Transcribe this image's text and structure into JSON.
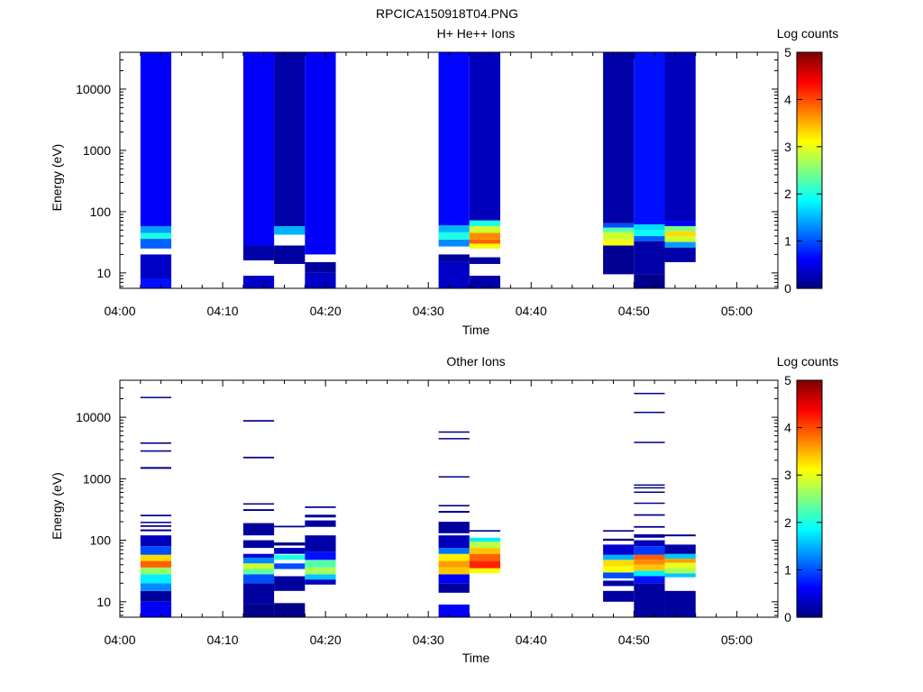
{
  "figure_title": "RPCICA150918T04.PNG",
  "colorbar": {
    "label": "Log counts",
    "range": [
      0,
      5
    ],
    "ticks": [
      "0",
      "1",
      "2",
      "3",
      "4",
      "5"
    ]
  },
  "chart_data": [
    {
      "type": "heatmap",
      "title": "H+ He++ Ions",
      "xlabel": "Time",
      "ylabel": "Energy (eV)",
      "y_scale": "log",
      "ylim": [
        5.6,
        40000
      ],
      "x_ticks": [
        "04:00",
        "04:10",
        "04:20",
        "04:30",
        "04:40",
        "04:50",
        "05:00"
      ],
      "y_ticks": [
        "10",
        "100",
        "1000",
        "10000"
      ],
      "z_label": "Log counts",
      "z_range": [
        0,
        5
      ],
      "columns": [
        {
          "t_start": "04:02",
          "t_end": "04:05",
          "spans": [
            {
              "e_lo": 5.6,
              "e_hi": 8,
              "z": 0.7
            },
            {
              "e_lo": 8,
              "e_hi": 20,
              "z": 0.35
            },
            {
              "e_lo": 25,
              "e_hi": 36,
              "z": 1.1
            },
            {
              "e_lo": 36,
              "e_hi": 45,
              "z": 2.0
            },
            {
              "e_lo": 45,
              "e_hi": 58,
              "z": 1.4
            },
            {
              "e_lo": 58,
              "e_hi": 40000,
              "z": 0.6
            }
          ]
        },
        {
          "t_start": "04:12",
          "t_end": "04:15",
          "spans": [
            {
              "e_lo": 5.6,
              "e_hi": 9,
              "z": 0.35
            },
            {
              "e_lo": 16,
              "e_hi": 28,
              "z": 0.2
            },
            {
              "e_lo": 28,
              "e_hi": 40000,
              "z": 0.6
            }
          ]
        },
        {
          "t_start": "04:15",
          "t_end": "04:18",
          "spans": [
            {
              "e_lo": 14,
              "e_hi": 28,
              "z": 0.15
            },
            {
              "e_lo": 42,
              "e_hi": 58,
              "z": 1.5
            },
            {
              "e_lo": 58,
              "e_hi": 40000,
              "z": 0.2
            }
          ]
        },
        {
          "t_start": "04:18",
          "t_end": "04:21",
          "spans": [
            {
              "e_lo": 5.6,
              "e_hi": 10,
              "z": 0.35
            },
            {
              "e_lo": 10,
              "e_hi": 15,
              "z": 0.15
            },
            {
              "e_lo": 20,
              "e_hi": 40000,
              "z": 0.6
            }
          ]
        },
        {
          "t_start": "04:31",
          "t_end": "04:34",
          "spans": [
            {
              "e_lo": 5.6,
              "e_hi": 15,
              "z": 0.35
            },
            {
              "e_lo": 15,
              "e_hi": 20,
              "z": 0.15
            },
            {
              "e_lo": 27,
              "e_hi": 35,
              "z": 1.3
            },
            {
              "e_lo": 35,
              "e_hi": 46,
              "z": 2.0
            },
            {
              "e_lo": 46,
              "e_hi": 60,
              "z": 1.5
            },
            {
              "e_lo": 60,
              "e_hi": 40000,
              "z": 0.65
            }
          ]
        },
        {
          "t_start": "04:34",
          "t_end": "04:37",
          "spans": [
            {
              "e_lo": 5.6,
              "e_hi": 9,
              "z": 0.2
            },
            {
              "e_lo": 14,
              "e_hi": 18,
              "z": 0.15
            },
            {
              "e_lo": 25,
              "e_hi": 30,
              "z": 3.1
            },
            {
              "e_lo": 30,
              "e_hi": 35,
              "z": 3.9
            },
            {
              "e_lo": 35,
              "e_hi": 45,
              "z": 3.7
            },
            {
              "e_lo": 45,
              "e_hi": 58,
              "z": 2.9
            },
            {
              "e_lo": 58,
              "e_hi": 72,
              "z": 2.0
            },
            {
              "e_lo": 72,
              "e_hi": 40000,
              "z": 0.3
            }
          ]
        },
        {
          "t_start": "04:47",
          "t_end": "04:50",
          "spans": [
            {
              "e_lo": 9.5,
              "e_hi": 28,
              "z": 0.1
            },
            {
              "e_lo": 28,
              "e_hi": 34,
              "z": 3.1
            },
            {
              "e_lo": 34,
              "e_hi": 46,
              "z": 2.9
            },
            {
              "e_lo": 46,
              "e_hi": 55,
              "z": 2.3
            },
            {
              "e_lo": 55,
              "e_hi": 65,
              "z": 1.0
            },
            {
              "e_lo": 65,
              "e_hi": 40000,
              "z": 0.2
            }
          ]
        },
        {
          "t_start": "04:50",
          "t_end": "04:53",
          "spans": [
            {
              "e_lo": 5.6,
              "e_hi": 9.5,
              "z": 0.05
            },
            {
              "e_lo": 9.5,
              "e_hi": 33,
              "z": 0.2
            },
            {
              "e_lo": 33,
              "e_hi": 40,
              "z": 1.1
            },
            {
              "e_lo": 40,
              "e_hi": 50,
              "z": 1.9
            },
            {
              "e_lo": 50,
              "e_hi": 62,
              "z": 1.7
            },
            {
              "e_lo": 62,
              "e_hi": 40000,
              "z": 0.7
            }
          ]
        },
        {
          "t_start": "04:53",
          "t_end": "04:56",
          "spans": [
            {
              "e_lo": 15,
              "e_hi": 26,
              "z": 0.2
            },
            {
              "e_lo": 26,
              "e_hi": 32,
              "z": 1.4
            },
            {
              "e_lo": 32,
              "e_hi": 40,
              "z": 2.9
            },
            {
              "e_lo": 40,
              "e_hi": 48,
              "z": 3.3
            },
            {
              "e_lo": 48,
              "e_hi": 58,
              "z": 2.5
            },
            {
              "e_lo": 58,
              "e_hi": 70,
              "z": 0.6
            },
            {
              "e_lo": 70,
              "e_hi": 40000,
              "z": 0.3
            }
          ]
        }
      ]
    },
    {
      "type": "heatmap",
      "title": "Other Ions",
      "xlabel": "Time",
      "ylabel": "Energy (eV)",
      "y_scale": "log",
      "ylim": [
        5.6,
        40000
      ],
      "x_ticks": [
        "04:00",
        "04:10",
        "04:20",
        "04:30",
        "04:40",
        "04:50",
        "05:00"
      ],
      "y_ticks": [
        "10",
        "100",
        "1000",
        "10000"
      ],
      "z_label": "Log counts",
      "z_range": [
        0,
        5
      ],
      "columns": [
        {
          "t_start": "04:02",
          "t_end": "04:05",
          "spans": [
            {
              "e_lo": 5.6,
              "e_hi": 10,
              "z": 0.6
            },
            {
              "e_lo": 10,
              "e_hi": 15,
              "z": 0.15
            },
            {
              "e_lo": 15,
              "e_hi": 20,
              "z": 1.3
            },
            {
              "e_lo": 20,
              "e_hi": 28,
              "z": 1.8
            },
            {
              "e_lo": 28,
              "e_hi": 36,
              "z": 2.6
            },
            {
              "e_lo": 36,
              "e_hi": 46,
              "z": 3.9
            },
            {
              "e_lo": 46,
              "e_hi": 58,
              "z": 3.3
            },
            {
              "e_lo": 58,
              "e_hi": 80,
              "z": 1.0
            },
            {
              "e_lo": 80,
              "e_hi": 120,
              "z": 0.3
            },
            {
              "e_lo": 140,
              "e_hi": 150,
              "z": 0.05
            },
            {
              "e_lo": 165,
              "e_hi": 175,
              "z": 0.05
            },
            {
              "e_lo": 190,
              "e_hi": 200,
              "z": 0.05
            },
            {
              "e_lo": 245,
              "e_hi": 260,
              "z": 0.05
            },
            {
              "e_lo": 1450,
              "e_hi": 1550,
              "z": 0.05
            },
            {
              "e_lo": 2750,
              "e_hi": 2900,
              "z": 0.05
            },
            {
              "e_lo": 3700,
              "e_hi": 3900,
              "z": 0.05
            },
            {
              "e_lo": 20500,
              "e_hi": 21500,
              "z": 0.05
            }
          ]
        },
        {
          "t_start": "04:12",
          "t_end": "04:15",
          "spans": [
            {
              "e_lo": 5.6,
              "e_hi": 9,
              "z": 0.05
            },
            {
              "e_lo": 9,
              "e_hi": 20,
              "z": 0.15
            },
            {
              "e_lo": 20,
              "e_hi": 28,
              "z": 1.0
            },
            {
              "e_lo": 28,
              "e_hi": 34,
              "z": 2.3
            },
            {
              "e_lo": 34,
              "e_hi": 42,
              "z": 2.9
            },
            {
              "e_lo": 42,
              "e_hi": 52,
              "z": 1.3
            },
            {
              "e_lo": 52,
              "e_hi": 60,
              "z": 0.4
            },
            {
              "e_lo": 75,
              "e_hi": 100,
              "z": 0.15
            },
            {
              "e_lo": 120,
              "e_hi": 190,
              "z": 0.15
            },
            {
              "e_lo": 300,
              "e_hi": 320,
              "z": 0.05
            },
            {
              "e_lo": 380,
              "e_hi": 400,
              "z": 0.05
            },
            {
              "e_lo": 2150,
              "e_hi": 2280,
              "z": 0.05
            },
            {
              "e_lo": 8500,
              "e_hi": 9000,
              "z": 0.05
            }
          ]
        },
        {
          "t_start": "04:15",
          "t_end": "04:18",
          "spans": [
            {
              "e_lo": 5.6,
              "e_hi": 9.5,
              "z": 0.05
            },
            {
              "e_lo": 15,
              "e_hi": 26,
              "z": 0.15
            },
            {
              "e_lo": 34,
              "e_hi": 42,
              "z": 1.0
            },
            {
              "e_lo": 48,
              "e_hi": 58,
              "z": 2.0
            },
            {
              "e_lo": 60,
              "e_hi": 75,
              "z": 0.3
            },
            {
              "e_lo": 82,
              "e_hi": 92,
              "z": 0.05
            },
            {
              "e_lo": 162,
              "e_hi": 172,
              "z": 0.05
            }
          ]
        },
        {
          "t_start": "04:18",
          "t_end": "04:21",
          "spans": [
            {
              "e_lo": 19,
              "e_hi": 23,
              "z": 0.3
            },
            {
              "e_lo": 23,
              "e_hi": 28,
              "z": 1.6
            },
            {
              "e_lo": 28,
              "e_hi": 36,
              "z": 2.7
            },
            {
              "e_lo": 36,
              "e_hi": 48,
              "z": 2.3
            },
            {
              "e_lo": 48,
              "e_hi": 65,
              "z": 0.7
            },
            {
              "e_lo": 65,
              "e_hi": 120,
              "z": 0.2
            },
            {
              "e_lo": 165,
              "e_hi": 210,
              "z": 0.15
            },
            {
              "e_lo": 235,
              "e_hi": 260,
              "z": 0.05
            },
            {
              "e_lo": 335,
              "e_hi": 355,
              "z": 0.05
            }
          ]
        },
        {
          "t_start": "04:31",
          "t_end": "04:34",
          "spans": [
            {
              "e_lo": 5.6,
              "e_hi": 9,
              "z": 0.6
            },
            {
              "e_lo": 14,
              "e_hi": 20,
              "z": 0.15
            },
            {
              "e_lo": 20,
              "e_hi": 28,
              "z": 0.6
            },
            {
              "e_lo": 28,
              "e_hi": 36,
              "z": 3.4
            },
            {
              "e_lo": 36,
              "e_hi": 46,
              "z": 3.6
            },
            {
              "e_lo": 46,
              "e_hi": 60,
              "z": 3.2
            },
            {
              "e_lo": 60,
              "e_hi": 75,
              "z": 1.2
            },
            {
              "e_lo": 75,
              "e_hi": 120,
              "z": 0.3
            },
            {
              "e_lo": 130,
              "e_hi": 200,
              "z": 0.15
            },
            {
              "e_lo": 280,
              "e_hi": 300,
              "z": 0.05
            },
            {
              "e_lo": 355,
              "e_hi": 375,
              "z": 0.05
            },
            {
              "e_lo": 1050,
              "e_hi": 1100,
              "z": 0.05
            },
            {
              "e_lo": 4400,
              "e_hi": 4600,
              "z": 0.05
            },
            {
              "e_lo": 5600,
              "e_hi": 5900,
              "z": 0.05
            }
          ]
        },
        {
          "t_start": "04:34",
          "t_end": "04:37",
          "spans": [
            {
              "e_lo": 29,
              "e_hi": 35,
              "z": 3.1
            },
            {
              "e_lo": 35,
              "e_hi": 46,
              "z": 4.2
            },
            {
              "e_lo": 46,
              "e_hi": 60,
              "z": 3.9
            },
            {
              "e_lo": 60,
              "e_hi": 75,
              "z": 3.4
            },
            {
              "e_lo": 75,
              "e_hi": 95,
              "z": 2.8
            },
            {
              "e_lo": 95,
              "e_hi": 110,
              "z": 1.8
            },
            {
              "e_lo": 138,
              "e_hi": 146,
              "z": 0.05
            }
          ]
        },
        {
          "t_start": "04:47",
          "t_end": "04:50",
          "spans": [
            {
              "e_lo": 10,
              "e_hi": 15,
              "z": 0.15
            },
            {
              "e_lo": 18,
              "e_hi": 22,
              "z": 0.2
            },
            {
              "e_lo": 24,
              "e_hi": 30,
              "z": 1.0
            },
            {
              "e_lo": 30,
              "e_hi": 38,
              "z": 3.1
            },
            {
              "e_lo": 38,
              "e_hi": 48,
              "z": 3.3
            },
            {
              "e_lo": 48,
              "e_hi": 58,
              "z": 1.5
            },
            {
              "e_lo": 58,
              "e_hi": 85,
              "z": 0.4
            },
            {
              "e_lo": 98,
              "e_hi": 106,
              "z": 0.05
            },
            {
              "e_lo": 138,
              "e_hi": 146,
              "z": 0.05
            }
          ]
        },
        {
          "t_start": "04:50",
          "t_end": "04:53",
          "spans": [
            {
              "e_lo": 5.6,
              "e_hi": 20,
              "z": 0.15
            },
            {
              "e_lo": 20,
              "e_hi": 26,
              "z": 0.7
            },
            {
              "e_lo": 26,
              "e_hi": 32,
              "z": 1.8
            },
            {
              "e_lo": 32,
              "e_hi": 40,
              "z": 3.4
            },
            {
              "e_lo": 40,
              "e_hi": 48,
              "z": 3.7
            },
            {
              "e_lo": 48,
              "e_hi": 58,
              "z": 3.9
            },
            {
              "e_lo": 58,
              "e_hi": 80,
              "z": 0.9
            },
            {
              "e_lo": 80,
              "e_hi": 100,
              "z": 0.3
            },
            {
              "e_lo": 110,
              "e_hi": 125,
              "z": 0.15
            },
            {
              "e_lo": 160,
              "e_hi": 170,
              "z": 0.05
            },
            {
              "e_lo": 250,
              "e_hi": 265,
              "z": 0.05
            },
            {
              "e_lo": 390,
              "e_hi": 410,
              "z": 0.05
            },
            {
              "e_lo": 590,
              "e_hi": 620,
              "z": 0.05
            },
            {
              "e_lo": 700,
              "e_hi": 730,
              "z": 0.05
            },
            {
              "e_lo": 780,
              "e_hi": 810,
              "z": 0.05
            },
            {
              "e_lo": 3800,
              "e_hi": 4000,
              "z": 0.05
            },
            {
              "e_lo": 11700,
              "e_hi": 12300,
              "z": 0.05
            },
            {
              "e_lo": 24000,
              "e_hi": 25000,
              "z": 0.05
            }
          ]
        },
        {
          "t_start": "04:53",
          "t_end": "04:56",
          "spans": [
            {
              "e_lo": 5.6,
              "e_hi": 15,
              "z": 0.15
            },
            {
              "e_lo": 25,
              "e_hi": 29,
              "z": 1.6
            },
            {
              "e_lo": 29,
              "e_hi": 35,
              "z": 2.7
            },
            {
              "e_lo": 35,
              "e_hi": 43,
              "z": 3.0
            },
            {
              "e_lo": 43,
              "e_hi": 50,
              "z": 3.6
            },
            {
              "e_lo": 50,
              "e_hi": 60,
              "z": 1.6
            },
            {
              "e_lo": 60,
              "e_hi": 85,
              "z": 0.2
            },
            {
              "e_lo": 116,
              "e_hi": 124,
              "z": 0.05
            }
          ]
        }
      ]
    }
  ]
}
